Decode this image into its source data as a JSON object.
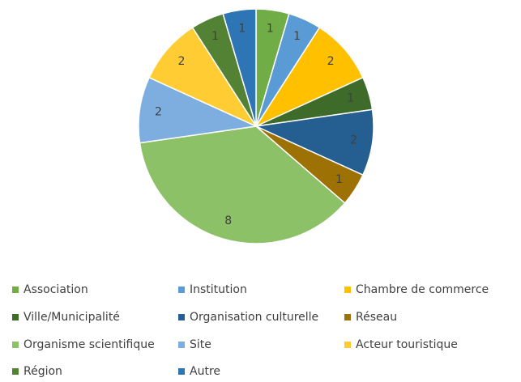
{
  "chart_data": {
    "type": "pie",
    "categories": [
      "Association",
      "Institution",
      "Chambre de commerce",
      "Ville/Municipalité",
      "Organisation culturelle",
      "Réseau",
      "Organisme scientifique",
      "Site",
      "Acteur touristique",
      "Région",
      "Autre"
    ],
    "values": [
      1,
      1,
      2,
      1,
      2,
      1,
      8,
      2,
      2,
      1,
      1
    ],
    "colors": [
      "#70ad47",
      "#5b9bd5",
      "#ffc000",
      "#3f6b2a",
      "#255e91",
      "#9e7104",
      "#8cc168",
      "#7eaee0",
      "#ffcd33",
      "#548235",
      "#2e75b6"
    ],
    "legend": "bottom"
  }
}
